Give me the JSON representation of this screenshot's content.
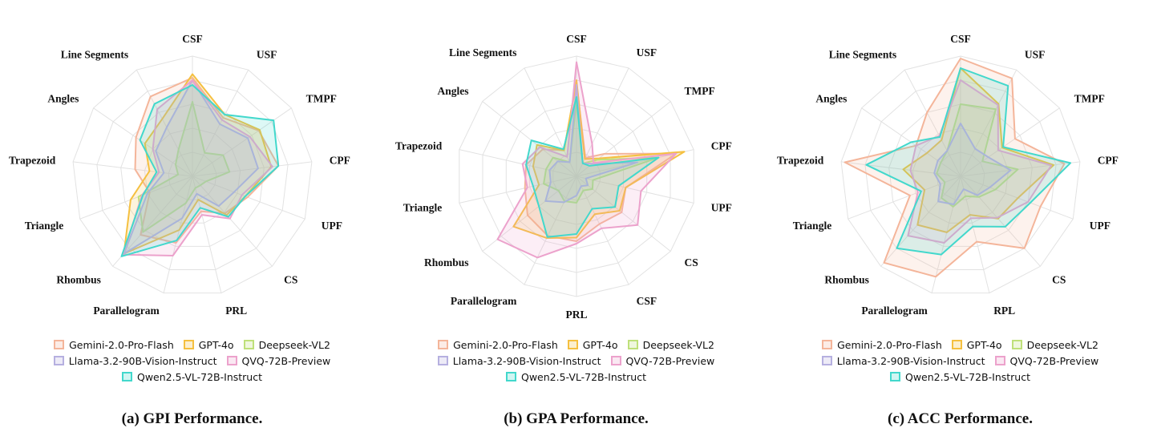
{
  "series_colors": {
    "Gemini-2.0-Pro-Flash": "#f4b59a",
    "GPT-4o": "#f5c040",
    "Deepseek-VL2": "#bfe07a",
    "Llama-3.2-90B-Vision-Instruct": "#b6b0e0",
    "QVQ-72B-Preview": "#eca2cc",
    "Qwen2.5-VL-72B-Instruct": "#42d8cc"
  },
  "chart_data": [
    {
      "type": "radar",
      "caption": "(a) GPI Performance.",
      "axes": [
        "CSF",
        "USF",
        "TMPF",
        "CPF",
        "UPF",
        "CS",
        "PRL",
        "Parallelogram",
        "Rhombus",
        "Triangle",
        "Trapezoid",
        "Angles",
        "Line Segments"
      ],
      "rlim": [
        0,
        100
      ],
      "grid": true,
      "legend_position": "bottom",
      "series": [
        {
          "name": "Gemini-2.0-Pro-Flash",
          "values": [
            82,
            55,
            67,
            72,
            49,
            41,
            30,
            57,
            65,
            38,
            48,
            57,
            75
          ]
        },
        {
          "name": "GPT-4o",
          "values": [
            85,
            58,
            68,
            66,
            47,
            43,
            20,
            46,
            86,
            55,
            36,
            48,
            54
          ]
        },
        {
          "name": "Deepseek-VL2",
          "values": [
            62,
            22,
            31,
            31,
            12,
            10,
            10,
            23,
            62,
            48,
            12,
            17,
            25
          ]
        },
        {
          "name": "Llama-3.2-90B-Vision-Instruct",
          "values": [
            80,
            49,
            56,
            55,
            37,
            33,
            15,
            36,
            86,
            40,
            24,
            37,
            46
          ]
        },
        {
          "name": "QVQ-72B-Preview",
          "values": [
            80,
            53,
            58,
            67,
            44,
            47,
            33,
            68,
            87,
            45,
            28,
            40,
            63
          ]
        },
        {
          "name": "Qwen2.5-VL-72B-Instruct",
          "values": [
            76,
            58,
            82,
            72,
            47,
            45,
            27,
            55,
            89,
            44,
            30,
            53,
            68
          ]
        }
      ]
    },
    {
      "type": "radar",
      "caption": "(b) GPA Performance.",
      "axes": [
        "CSF",
        "USF",
        "TMPF",
        "CPF",
        "UPF",
        "CS",
        "CSF",
        "PRL",
        "Parallelogram",
        "Rhombus",
        "Triangle",
        "Trapezoid",
        "Angles",
        "Line Segments"
      ],
      "rlim": [
        0,
        100
      ],
      "grid": true,
      "legend_position": "bottom",
      "series": [
        {
          "name": "Gemini-2.0-Pro-Flash",
          "values": [
            78,
            17,
            30,
            85,
            42,
            48,
            44,
            54,
            55,
            52,
            44,
            43,
            36,
            24
          ]
        },
        {
          "name": "GPT-4o",
          "values": [
            80,
            16,
            24,
            92,
            42,
            46,
            35,
            51,
            57,
            67,
            32,
            37,
            42,
            24
          ]
        },
        {
          "name": "Deepseek-VL2",
          "values": [
            63,
            12,
            22,
            70,
            14,
            17,
            13,
            22,
            23,
            19,
            28,
            26,
            25,
            13
          ]
        },
        {
          "name": "Llama-3.2-90B-Vision-Instruct",
          "values": [
            76,
            12,
            17,
            52,
            8,
            12,
            9,
            16,
            24,
            33,
            22,
            23,
            20,
            13
          ]
        },
        {
          "name": "QVQ-72B-Preview",
          "values": [
            95,
            30,
            18,
            85,
            55,
            65,
            48,
            56,
            75,
            84,
            42,
            46,
            39,
            18
          ]
        },
        {
          "name": "Qwen2.5-VL-72B-Instruct",
          "values": [
            66,
            12,
            14,
            70,
            36,
            41,
            30,
            48,
            56,
            40,
            37,
            43,
            48,
            25
          ]
        }
      ]
    },
    {
      "type": "radar",
      "caption": "(c) ACC Performance.",
      "axes": [
        "CSF",
        "USF",
        "TMPF",
        "CPF",
        "UPF",
        "CS",
        "RPL",
        "Parallelogram",
        "Rhombus",
        "Triangle",
        "Trapezoid",
        "Angles",
        "Line Segments"
      ],
      "rlim": [
        0,
        100
      ],
      "grid": true,
      "legend_position": "bottom",
      "series": [
        {
          "name": "Gemini-2.0-Pro-Flash",
          "values": [
            98,
            92,
            55,
            87,
            71,
            80,
            56,
            86,
            96,
            45,
            97,
            45,
            60
          ]
        },
        {
          "name": "GPT-4o",
          "values": [
            90,
            68,
            42,
            78,
            51,
            47,
            33,
            48,
            54,
            32,
            48,
            34,
            34
          ]
        },
        {
          "name": "Deepseek-VL2",
          "values": [
            60,
            63,
            22,
            48,
            31,
            23,
            17,
            26,
            24,
            14,
            20,
            20,
            24
          ]
        },
        {
          "name": "Llama-3.2-90B-Vision-Instruct",
          "values": [
            44,
            26,
            28,
            42,
            26,
            21,
            11,
            24,
            28,
            18,
            22,
            23,
            24
          ]
        },
        {
          "name": "QVQ-72B-Preview",
          "values": [
            80,
            67,
            38,
            76,
            60,
            46,
            36,
            57,
            66,
            38,
            42,
            45,
            38
          ]
        },
        {
          "name": "Qwen2.5-VL-72B-Instruct",
          "values": [
            90,
            85,
            43,
            92,
            62,
            56,
            43,
            67,
            80,
            35,
            79,
            50,
            37
          ]
        }
      ]
    }
  ]
}
